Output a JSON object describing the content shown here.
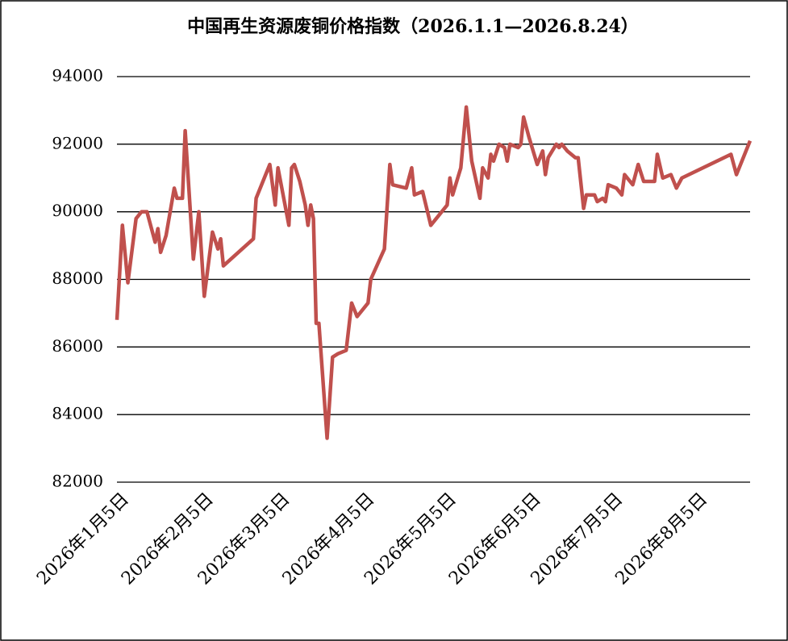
{
  "chart_data": {
    "type": "line",
    "title": "中国再生资源废铜价格指数（2026.1.1—2026.8.24）",
    "x": [
      "2026-01-04",
      "2026-01-06",
      "2026-01-08",
      "2026-01-11",
      "2026-01-13",
      "2026-01-15",
      "2026-01-18",
      "2026-01-19",
      "2026-01-20",
      "2026-01-22",
      "2026-01-25",
      "2026-01-26",
      "2026-01-28",
      "2026-01-29",
      "2026-02-01",
      "2026-02-03",
      "2026-02-05",
      "2026-02-08",
      "2026-02-10",
      "2026-02-11",
      "2026-02-12",
      "2026-02-23",
      "2026-02-24",
      "2026-02-26",
      "2026-03-01",
      "2026-03-03",
      "2026-03-04",
      "2026-03-08",
      "2026-03-09",
      "2026-03-10",
      "2026-03-12",
      "2026-03-14",
      "2026-03-15",
      "2026-03-16",
      "2026-03-17",
      "2026-03-18",
      "2026-03-19",
      "2026-03-22",
      "2026-03-24",
      "2026-03-26",
      "2026-03-29",
      "2026-03-31",
      "2026-04-02",
      "2026-04-06",
      "2026-04-07",
      "2026-04-12",
      "2026-04-14",
      "2026-04-15",
      "2026-04-20",
      "2026-04-22",
      "2026-04-23",
      "2026-04-26",
      "2026-04-29",
      "2026-05-05",
      "2026-05-06",
      "2026-05-07",
      "2026-05-10",
      "2026-05-12",
      "2026-05-14",
      "2026-05-17",
      "2026-05-18",
      "2026-05-20",
      "2026-05-21",
      "2026-05-22",
      "2026-05-24",
      "2026-05-26",
      "2026-05-27",
      "2026-05-28",
      "2026-05-31",
      "2026-06-01",
      "2026-06-02",
      "2026-06-04",
      "2026-06-07",
      "2026-06-09",
      "2026-06-10",
      "2026-06-11",
      "2026-06-14",
      "2026-06-15",
      "2026-06-16",
      "2026-06-18",
      "2026-06-21",
      "2026-06-22",
      "2026-06-24",
      "2026-06-25",
      "2026-06-28",
      "2026-06-29",
      "2026-07-01",
      "2026-07-02",
      "2026-07-03",
      "2026-07-06",
      "2026-07-08",
      "2026-07-09",
      "2026-07-12",
      "2026-07-14",
      "2026-07-16",
      "2026-07-20",
      "2026-07-21",
      "2026-07-23",
      "2026-07-26",
      "2026-07-28",
      "2026-07-30",
      "2026-08-17",
      "2026-08-19",
      "2026-08-24"
    ],
    "series": [
      {
        "color": "#c0504d",
        "values": [
          86800,
          89600,
          87900,
          89800,
          90000,
          90000,
          89100,
          89500,
          88800,
          89300,
          90700,
          90400,
          90400,
          92400,
          88600,
          90000,
          87500,
          89400,
          88900,
          89200,
          88400,
          89200,
          90400,
          90800,
          91400,
          90200,
          91300,
          89600,
          91300,
          91400,
          90900,
          90200,
          89600,
          90200,
          89800,
          86700,
          86700,
          83300,
          85700,
          85800,
          85900,
          87300,
          86900,
          87300,
          88000,
          88900,
          91400,
          90800,
          90700,
          91300,
          90500,
          90600,
          89600,
          90200,
          91000,
          90500,
          91300,
          93100,
          91500,
          90400,
          91300,
          91000,
          91700,
          91500,
          92000,
          91900,
          91500,
          92000,
          91900,
          92000,
          92800,
          92200,
          91400,
          91800,
          91100,
          91600,
          92000,
          91900,
          92000,
          91800,
          91600,
          91600,
          90100,
          90500,
          90500,
          90300,
          90400,
          90300,
          90800,
          90700,
          90500,
          91100,
          90800,
          91400,
          90900,
          90900,
          91700,
          91000,
          91100,
          90700,
          91000,
          91700,
          91100,
          92100
        ]
      }
    ],
    "xlim": [
      "2026-01-04",
      "2026-08-24"
    ],
    "xticks": [
      {
        "value": "2026-01-05",
        "label": "2026年1月5日"
      },
      {
        "value": "2026-02-05",
        "label": "2026年2月5日"
      },
      {
        "value": "2026-03-05",
        "label": "2026年3月5日"
      },
      {
        "value": "2026-04-05",
        "label": "2026年4月5日"
      },
      {
        "value": "2026-05-05",
        "label": "2026年5月5日"
      },
      {
        "value": "2026-06-05",
        "label": "2026年6月5日"
      },
      {
        "value": "2026-07-05",
        "label": "2026年7月5日"
      },
      {
        "value": "2026-08-05",
        "label": "2026年8月5日"
      }
    ],
    "ylim": [
      82000,
      94000
    ],
    "yticks": [
      82000,
      84000,
      86000,
      88000,
      90000,
      92000,
      94000
    ],
    "grid": true
  }
}
